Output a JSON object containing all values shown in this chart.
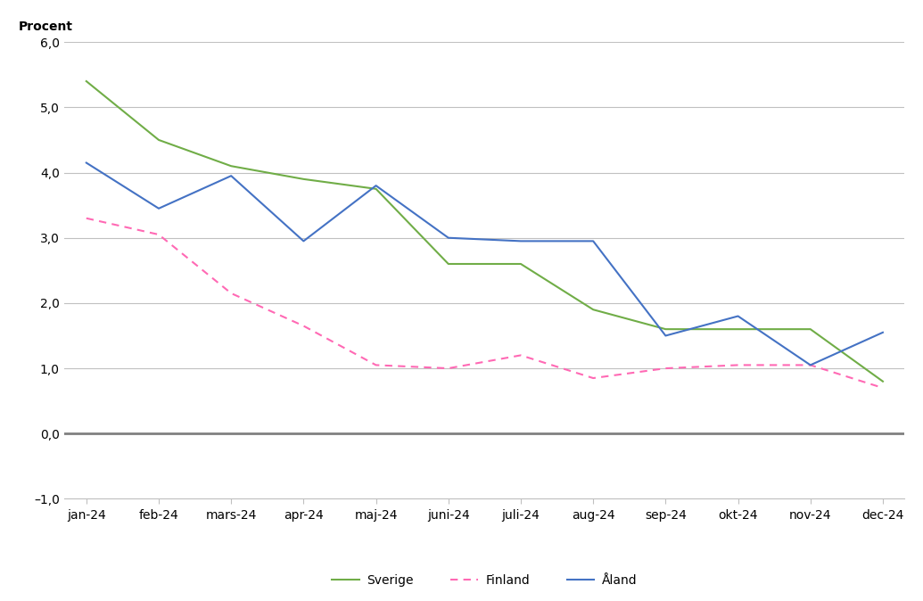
{
  "months": [
    "jan-24",
    "feb-24",
    "mars-24",
    "apr-24",
    "maj-24",
    "juni-24",
    "juli-24",
    "aug-24",
    "sep-24",
    "okt-24",
    "nov-24",
    "dec-24"
  ],
  "sverige": [
    5.4,
    4.5,
    4.1,
    3.9,
    3.75,
    2.6,
    2.6,
    1.9,
    1.6,
    1.6,
    1.6,
    0.8
  ],
  "finland": [
    3.3,
    3.05,
    2.15,
    1.65,
    1.05,
    1.0,
    1.2,
    0.85,
    1.0,
    1.05,
    1.05,
    0.7
  ],
  "aland": [
    4.15,
    3.45,
    3.95,
    2.95,
    3.8,
    3.0,
    2.95,
    2.95,
    1.5,
    1.8,
    1.05,
    1.55
  ],
  "ylabel": "Procent",
  "ylim": [
    -1.0,
    6.0
  ],
  "yticks": [
    -1.0,
    0.0,
    1.0,
    2.0,
    3.0,
    4.0,
    5.0,
    6.0
  ],
  "ytick_labels": [
    "–1,0",
    "0,0",
    "1,0",
    "2,0",
    "3,0",
    "4,0",
    "5,0",
    "6,0"
  ],
  "sverige_color": "#70AD47",
  "finland_color": "#FF69B4",
  "aland_color": "#4472C4",
  "background_color": "#FFFFFF",
  "grid_color": "#C0C0C0",
  "zero_line_color": "#808080",
  "legend_labels": [
    "Sverige",
    "Finland",
    "Åland"
  ],
  "axis_fontsize": 10,
  "legend_fontsize": 10
}
